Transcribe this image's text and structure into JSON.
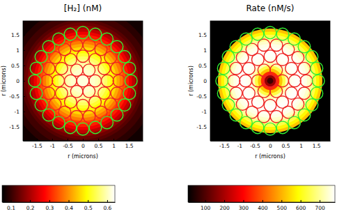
{
  "chart_data": [
    {
      "type": "heatmap",
      "title": "[H₂] (nM)",
      "x_label": "r (microns)",
      "y_label": "r (microns)",
      "xlim": [
        -1.95,
        1.95
      ],
      "ylim": [
        -1.95,
        1.95
      ],
      "xticks": [
        -1.5,
        -1,
        -0.5,
        0,
        0.5,
        1,
        1.5
      ],
      "yticks": [
        -1.5,
        -1,
        -0.5,
        0,
        0.5,
        1,
        1.5
      ],
      "profile": {
        "r_outer": [
          0.1,
          0.2,
          0.3,
          0.4,
          0.5,
          0.6,
          0.7,
          0.8,
          0.9,
          1.0,
          1.1,
          1.2,
          1.3,
          1.4,
          1.5,
          1.6,
          1.7,
          1.8,
          1.9,
          2.0,
          2.2,
          2.4,
          2.8
        ],
        "values": [
          0.62,
          0.62,
          0.61,
          0.61,
          0.6,
          0.59,
          0.57,
          0.55,
          0.52,
          0.49,
          0.46,
          0.42,
          0.38,
          0.34,
          0.3,
          0.26,
          0.22,
          0.18,
          0.15,
          0.13,
          0.11,
          0.09,
          0.07
        ]
      },
      "colorbar": {
        "range": [
          0.055,
          0.64
        ],
        "ticks": [
          0.1,
          0.2,
          0.3,
          0.4,
          0.5,
          0.6
        ]
      },
      "cells": [
        {
          "ring_radius": 0,
          "count": 1,
          "radius": 0.2,
          "color": "#ee2222"
        },
        {
          "ring_radius": 0.4,
          "count": 6,
          "radius": 0.2,
          "color": "#ee2222"
        },
        {
          "ring_radius": 0.8,
          "count": 12,
          "radius": 0.2,
          "color": "#ee2222"
        },
        {
          "ring_radius": 1.18,
          "count": 18,
          "radius": 0.2,
          "color": "#ee2222"
        },
        {
          "ring_radius": 1.57,
          "count": 24,
          "radius": 0.2,
          "color": "#33ee33"
        }
      ]
    },
    {
      "type": "heatmap",
      "title": "Rate (nM/s)",
      "x_label": "r (microns)",
      "y_label": "r (microns)",
      "xlim": [
        -1.95,
        1.95
      ],
      "ylim": [
        -1.95,
        1.95
      ],
      "xticks": [
        -1.5,
        -1,
        -0.5,
        0,
        0.5,
        1,
        1.5
      ],
      "yticks": [
        -1.5,
        -1,
        -0.5,
        0,
        0.5,
        1,
        1.5
      ],
      "profile": {
        "r_outer": [
          0.1,
          0.2,
          0.3,
          0.4,
          0.5,
          0.6,
          0.7,
          0.8,
          0.9,
          1.0,
          1.1,
          1.2,
          1.3,
          1.4,
          1.5,
          1.6,
          1.7,
          1.8,
          1.9,
          2.0,
          2.2,
          2.4,
          2.8
        ],
        "values": [
          80,
          180,
          350,
          520,
          640,
          720,
          760,
          770,
          775,
          775,
          770,
          760,
          740,
          700,
          640,
          580,
          520,
          10,
          10,
          10,
          10,
          10,
          10
        ]
      },
      "colorbar": {
        "range": [
          10,
          780
        ],
        "ticks": [
          100,
          200,
          300,
          400,
          500,
          600,
          700
        ]
      },
      "cells": [
        {
          "ring_radius": 0,
          "count": 1,
          "radius": 0.2,
          "color": "#ee2222"
        },
        {
          "ring_radius": 0.4,
          "count": 6,
          "radius": 0.2,
          "color": "#ee2222"
        },
        {
          "ring_radius": 0.8,
          "count": 12,
          "radius": 0.2,
          "color": "#ee2222"
        },
        {
          "ring_radius": 1.18,
          "count": 18,
          "radius": 0.2,
          "color": "#ee2222"
        },
        {
          "ring_radius": 1.57,
          "count": 24,
          "radius": 0.2,
          "color": "#33ee33"
        }
      ]
    }
  ]
}
